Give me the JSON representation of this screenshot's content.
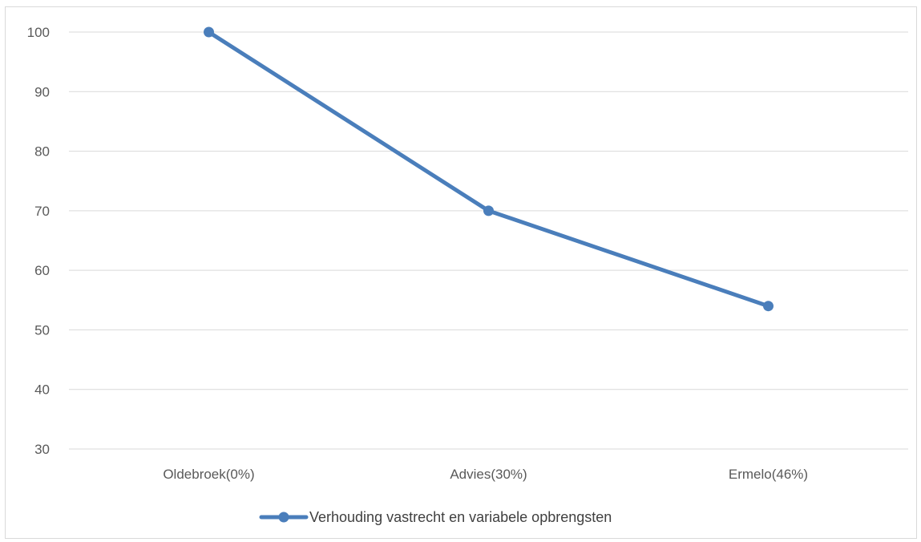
{
  "chart_data": {
    "type": "line",
    "title": "",
    "xlabel": "",
    "ylabel": "",
    "categories": [
      "Oldebroek(0%)",
      "Advies(30%)",
      "Ermelo(46%)"
    ],
    "series": [
      {
        "name": "Verhouding vastrecht en variabele opbrengsten",
        "values": [
          100,
          70,
          54
        ],
        "color": "#4a7ebb"
      }
    ],
    "ylim": [
      30,
      100
    ],
    "yticks": [
      30,
      40,
      50,
      60,
      70,
      80,
      90,
      100
    ],
    "grid": true,
    "legend_position": "bottom",
    "markers": true
  },
  "colors": {
    "gridline": "#d9d9d9",
    "tick_text": "#595959",
    "legend_text": "#404040",
    "frame_border": "#d9d9d9"
  }
}
